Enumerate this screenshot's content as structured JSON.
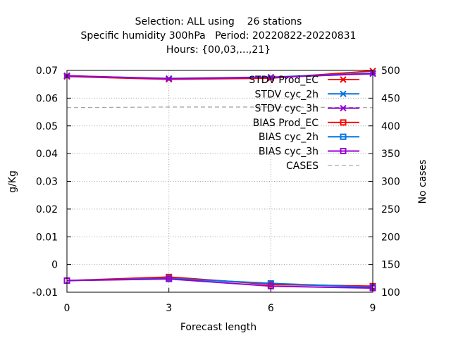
{
  "chart_data": {
    "type": "line",
    "title_lines": [
      "Selection: ALL using    26 stations",
      "Specific humidity 300hPa   Period: 20220822-20220831",
      "Hours: {00,03,...,21}"
    ],
    "xlabel": "Forecast length",
    "ylabel": "g/Kg",
    "y2label": "No cases",
    "x_ticks": [
      0,
      3,
      6,
      9
    ],
    "y_ticks": [
      0.07,
      0.06,
      0.05,
      0.04,
      0.03,
      0.02,
      0.01,
      0,
      -0.01
    ],
    "y2_ticks": [
      500,
      450,
      400,
      350,
      300,
      250,
      200,
      150,
      100
    ],
    "xlim": [
      0,
      9
    ],
    "ylim": [
      -0.01,
      0.07
    ],
    "y2lim": [
      100,
      500
    ],
    "grid": true,
    "legend_placement": "top-right",
    "x": [
      0,
      3,
      6,
      9
    ],
    "series": [
      {
        "name": "STDV Prod_EC",
        "axis": "y",
        "color": "#ff0000",
        "marker": "x",
        "values": [
          0.0678,
          0.0668,
          0.0672,
          0.0698
        ]
      },
      {
        "name": "STDV cyc_2h",
        "axis": "y",
        "color": "#0073e6",
        "marker": "x",
        "values": [
          0.068,
          0.0671,
          0.0676,
          0.069
        ]
      },
      {
        "name": "STDV cyc_3h",
        "axis": "y",
        "color": "#9400d3",
        "marker": "x",
        "values": [
          0.0681,
          0.067,
          0.0675,
          0.0688
        ]
      },
      {
        "name": "BIAS Prod_EC",
        "axis": "y",
        "color": "#ff0000",
        "marker": "square",
        "values": [
          -0.0058,
          -0.0045,
          -0.0072,
          -0.0078
        ]
      },
      {
        "name": "BIAS cyc_2h",
        "axis": "y",
        "color": "#0073e6",
        "marker": "square",
        "values": [
          -0.0058,
          -0.005,
          -0.0068,
          -0.0082
        ]
      },
      {
        "name": "BIAS cyc_3h",
        "axis": "y",
        "color": "#9400d3",
        "marker": "square",
        "values": [
          -0.0058,
          -0.0052,
          -0.0078,
          -0.0085
        ]
      },
      {
        "name": "CASES",
        "axis": "y2",
        "color": "#a0a0a0",
        "marker": "none",
        "dashed": true,
        "values": [
          433,
          434,
          434,
          433
        ]
      }
    ]
  }
}
